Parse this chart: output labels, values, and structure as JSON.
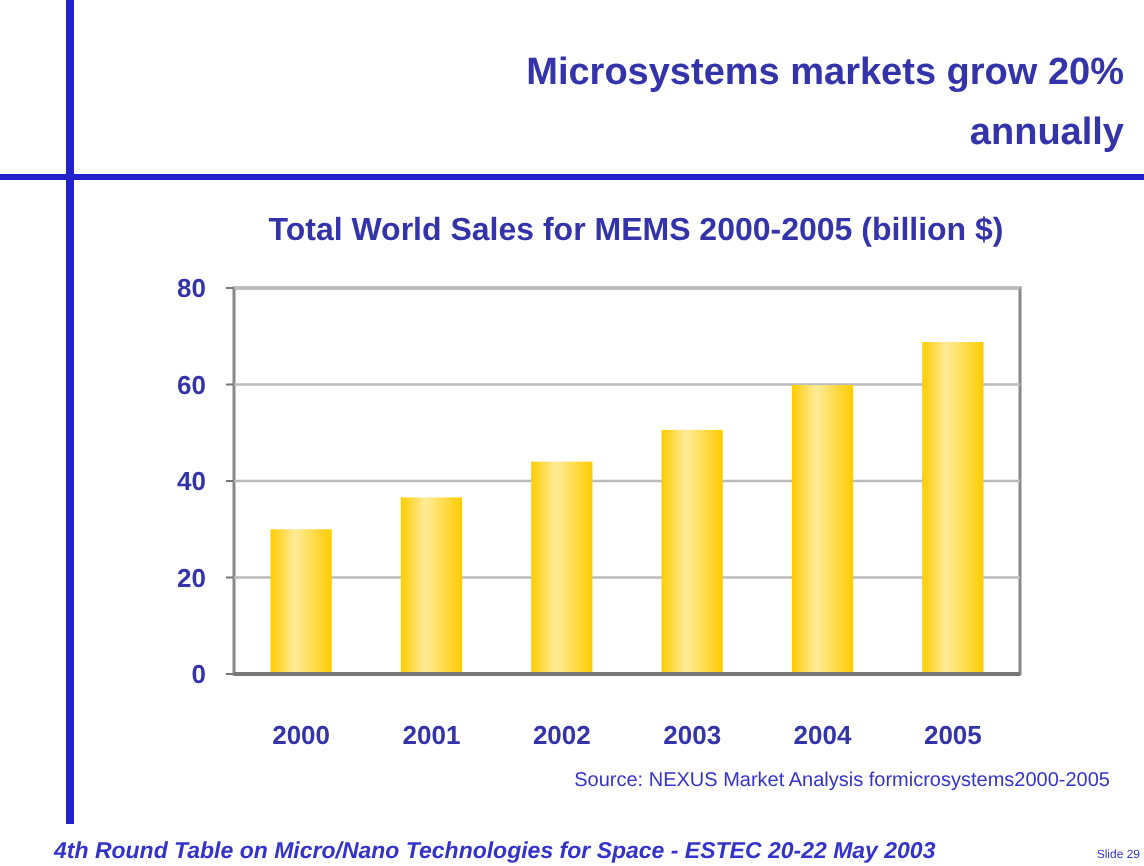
{
  "chart_data": {
    "type": "bar",
    "title": "Microsystems markets grow 20% annually",
    "subtitle": "Total World Sales for MEMS 2000-2005 (billion $)",
    "categories": [
      "2000",
      "2001",
      "2002",
      "2003",
      "2004",
      "2005"
    ],
    "values": [
      30,
      36.6,
      44,
      50.6,
      59.9,
      68.8
    ],
    "color": "#ffcc00",
    "ylim": [
      0,
      80
    ],
    "yticks": [
      0,
      20,
      40,
      60,
      80
    ],
    "grid": "y",
    "annotations": [
      "Source: NEXUS Market Analysis formicrosystems2000-2005",
      "4th Round Table on Micro/Nano Technologies for Space - ESTEC 20-22 May 2003",
      "Slide 29"
    ]
  }
}
